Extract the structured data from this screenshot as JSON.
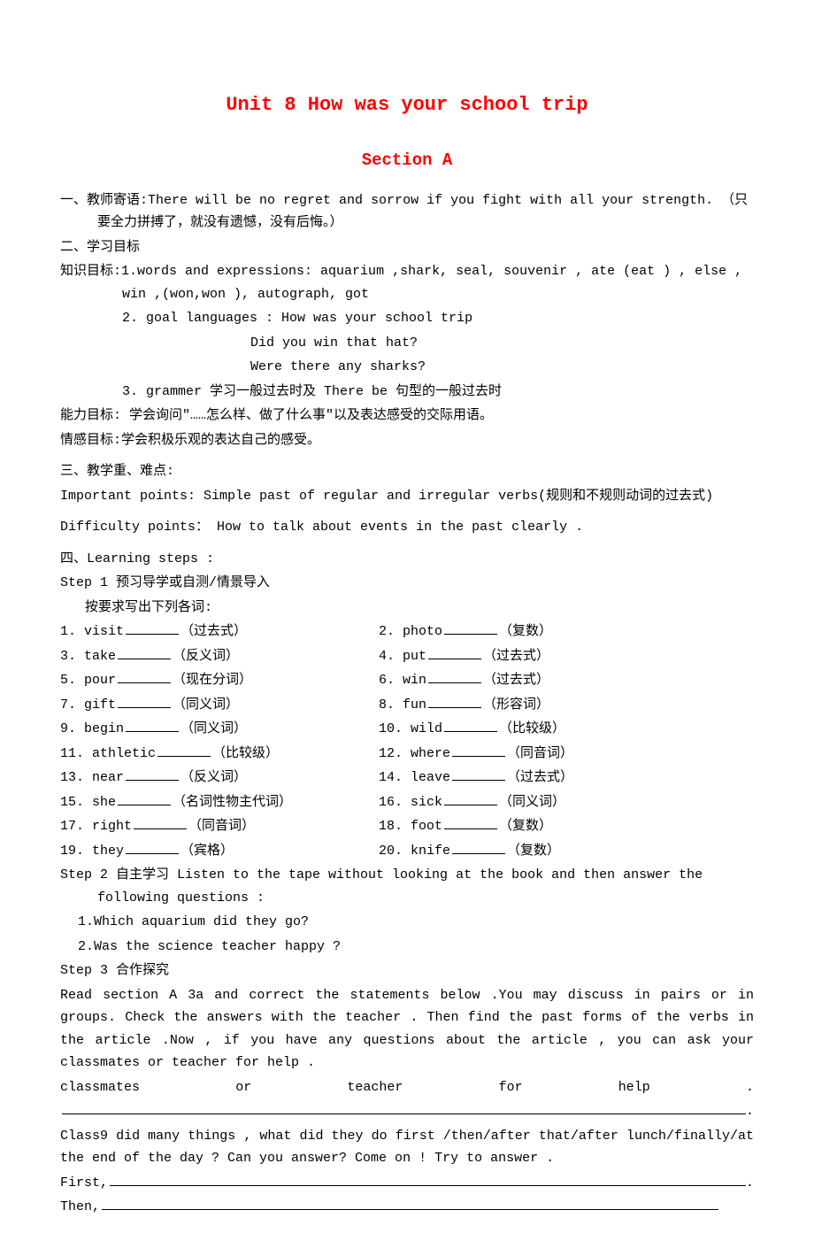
{
  "title": {
    "main": "Unit 8 How was your school trip",
    "section": "Section A"
  },
  "motto": {
    "label": "一、教师寄语:",
    "text": "There will be no regret and sorrow if you fight with all your strength. （只要全力拼搏了，就没有遗憾，没有后悔。）"
  },
  "goals": {
    "header": "二、学习目标",
    "knowledge_label": "知识目标:",
    "item1": "1.words and expressions: aquarium ,shark, seal, souvenir , ate (eat ) , else , win ,(won,won ), autograph, got",
    "item2": "2. goal languages : How was your school trip",
    "item2_line2": "Did you win that hat?",
    "item2_line3": "Were there any sharks?",
    "item3": "3. grammer 学习一般过去时及 There be 句型的一般过去时",
    "ability": "能力目标: 学会询问\"……怎么样、做了什么事\"以及表达感受的交际用语。",
    "emotion": "情感目标:学会积极乐观的表达自己的感受。"
  },
  "points": {
    "header": "三、教学重、难点:",
    "important": "Important points: Simple past of regular and irregular verbs(规则和不规则动词的过去式)",
    "difficulty": "Difficulty points： How to talk about events in the past clearly ."
  },
  "steps": {
    "header": "四、Learning steps :",
    "step1": {
      "title": "Step 1 预习导学或自测/情景导入",
      "instruction": "按要求写出下列各词:",
      "vocab": [
        {
          "num": "1.",
          "word": "visit",
          "hint": "（过去式）",
          "rnum": "2.",
          "rword": "photo",
          "rhint": "（复数）"
        },
        {
          "num": "3.",
          "word": "take",
          "hint": "（反义词）",
          "rnum": "4.",
          "rword": "put",
          "rhint": "（过去式）"
        },
        {
          "num": "5.",
          "word": "pour",
          "hint": "（现在分词）",
          "rnum": "6.",
          "rword": "win",
          "rhint": "（过去式）"
        },
        {
          "num": "7.",
          "word": "gift",
          "hint": "（同义词）",
          "rnum": "8.",
          "rword": "fun",
          "rhint": "（形容词）"
        },
        {
          "num": "9.",
          "word": "begin",
          "hint": "（同义词）",
          "rnum": "10.",
          "rword": "wild",
          "rhint": "（比较级）"
        },
        {
          "num": "11.",
          "word": "athletic",
          "hint": "（比较级）",
          "rnum": "12.",
          "rword": "where",
          "rhint": "（同音词）"
        },
        {
          "num": "13.",
          "word": "near",
          "hint": "（反义词）",
          "rnum": "14.",
          "rword": "leave",
          "rhint": "（过去式）"
        },
        {
          "num": "15.",
          "word": "she",
          "hint": "（名词性物主代词）",
          "rnum": "16.",
          "rword": "sick",
          "rhint": "（同义词）"
        },
        {
          "num": "17.",
          "word": "right",
          "hint": "（同音词）",
          "rnum": "18.",
          "rword": "foot",
          "rhint": "（复数）"
        },
        {
          "num": " 19.",
          "word": "they",
          "hint": "（宾格）",
          "rnum": "20.",
          "rword": "knife",
          "rhint": "（复数）"
        }
      ]
    },
    "step2": {
      "title": "Step 2  自主学习 Listen to the tape without looking at the book and then answer the following questions :",
      "q1": "1.Which aquarium did they go?",
      "q2": "2.Was the science teacher happy ?"
    },
    "step3": {
      "title": "Step 3 合作探究",
      "read_text_before": "Read",
      "read_span": " section A 3a ",
      "read_text_middle": "and correct the statements below .You may discuss in pairs or in groups. Check the answers with the teacher . Then find the past forms of the verbs in the",
      "article1": " article ",
      "read_text_middle2": ".Now , if you have any questions about the",
      "article2": " article ",
      "read_text_after": ", you can ask your classmates or teacher for help .",
      "class9": "Class9 did many things , what did they do first /then/after that/after lunch/finally/at the end of the day ? Can you answer? Come on ! Try to answer .",
      "first_label": "First,",
      "then_label": "Then,"
    }
  }
}
